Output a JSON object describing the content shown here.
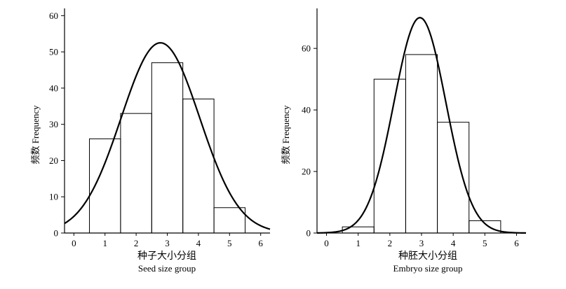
{
  "chart_data": [
    {
      "type": "bar",
      "subtype": "histogram-with-normal-curve",
      "x_ticks": [
        "0",
        "1",
        "2",
        "3",
        "4",
        "5",
        "6"
      ],
      "y_ticks": [
        "0",
        "10",
        "20",
        "30",
        "40",
        "50",
        "60"
      ],
      "xlim": [
        -0.3,
        6.3
      ],
      "ylim": [
        0,
        62
      ],
      "xlabel_cn": "种子大小分组",
      "xlabel_en": "Seed size group",
      "ylabel": "频数 Frequency",
      "categories": [
        1,
        2,
        3,
        4,
        5
      ],
      "values": [
        26,
        33,
        47,
        37,
        7
      ],
      "bin_width": 1,
      "curve": {
        "mean": 2.78,
        "sd": 1.26,
        "peak": 52.5
      }
    },
    {
      "type": "bar",
      "subtype": "histogram-with-normal-curve",
      "x_ticks": [
        "0",
        "1",
        "2",
        "3",
        "4",
        "5",
        "6"
      ],
      "y_ticks": [
        "0",
        "20",
        "40",
        "60"
      ],
      "xlim": [
        -0.3,
        6.3
      ],
      "ylim": [
        0,
        73
      ],
      "xlabel_cn": "种胚大小分组",
      "xlabel_en": "Embryo size group",
      "ylabel": "频数 Frequency",
      "categories": [
        1,
        2,
        3,
        4,
        5
      ],
      "values": [
        2,
        50,
        58,
        36,
        4
      ],
      "bin_width": 1,
      "curve": {
        "mean": 2.95,
        "sd": 0.82,
        "peak": 70
      }
    }
  ]
}
